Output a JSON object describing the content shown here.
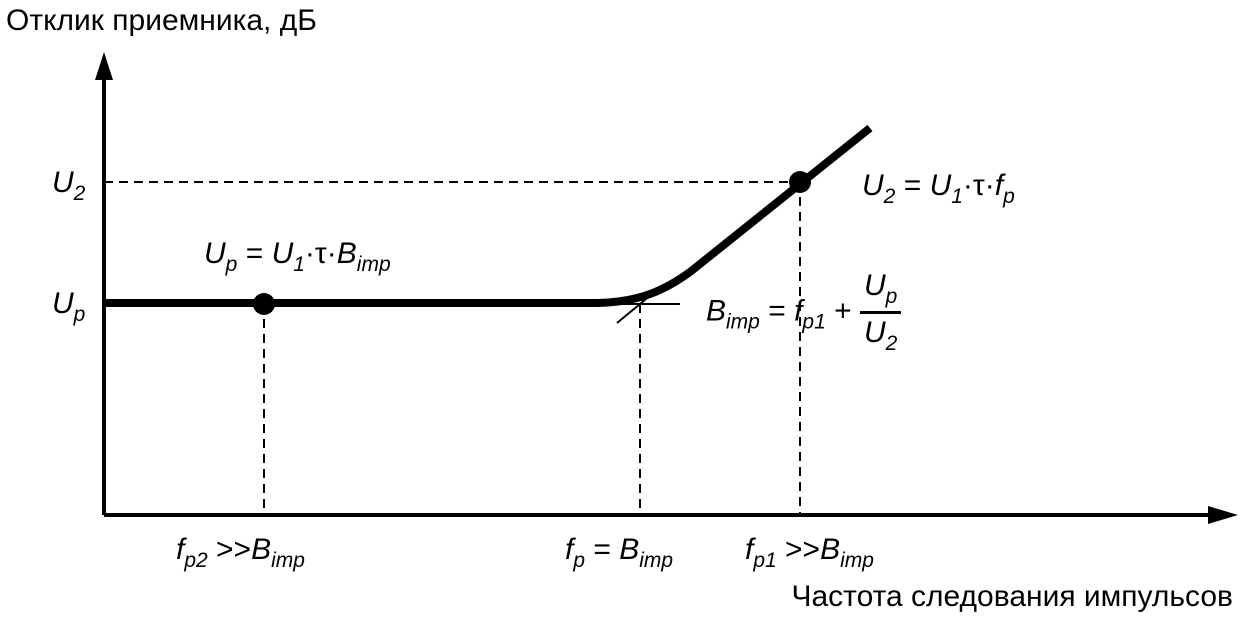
{
  "title": "Отклик приемника, дБ",
  "x_axis_label": "Частота следования импульсов",
  "y_ticks": {
    "u2": {
      "main": "U",
      "sub": "2"
    },
    "up": {
      "main": "U",
      "sub": "p"
    }
  },
  "annotations": {
    "up_eq": {
      "u": "U",
      "u_sub": "p",
      "eq": " = ",
      "u1": "U",
      "u1_sub": "1",
      "dot1": "·",
      "tau": "τ",
      "dot2": "·",
      "b": "B",
      "b_sub": "imp"
    },
    "u2_eq": {
      "u": "U",
      "u_sub": "2",
      "eq": " = ",
      "u1": "U",
      "u1_sub": "1",
      "dot1": "·",
      "tau": "τ",
      "dot2": "·",
      "f": "f",
      "f_sub": "p"
    },
    "bimp_eq": {
      "b": "B",
      "b_sub": "imp",
      "eq": " = ",
      "f": "f",
      "f_sub": "p1",
      "plus": " + ",
      "num": "U",
      "num_sub": "p",
      "den": "U",
      "den_sub": "2"
    }
  },
  "x_ticks": {
    "fp2": {
      "f": "f",
      "f_sub": "p2",
      "rel": " >>",
      "b": "B",
      "b_sub": "imp"
    },
    "fp": {
      "f": "f",
      "f_sub": "p",
      "rel": " =  ",
      "b": "B",
      "b_sub": "imp"
    },
    "fp1": {
      "f": "f",
      "f_sub": "p1",
      "rel": " >>",
      "b": "B",
      "b_sub": "imp"
    }
  },
  "colors": {
    "line": "#000000",
    "background": "#ffffff"
  }
}
